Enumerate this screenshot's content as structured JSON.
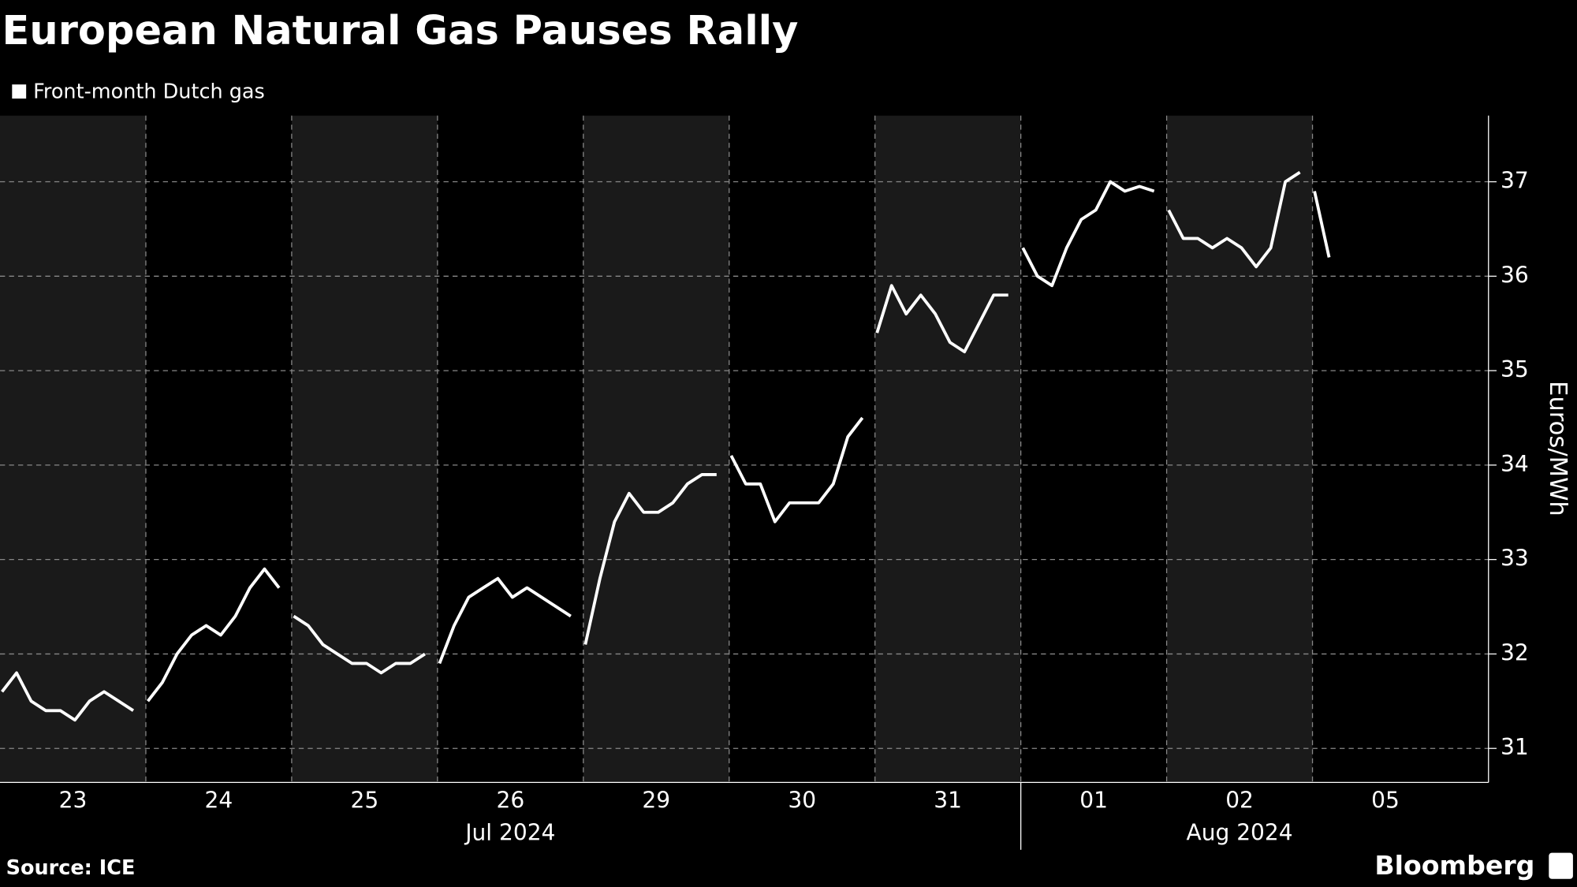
{
  "chart_data": {
    "type": "line",
    "title": "European Natural Gas Pauses Rally",
    "ylabel": "Euros/MWh",
    "source": "Source: ICE",
    "brand": "Bloomberg",
    "categories": [
      "23",
      "24",
      "25",
      "26",
      "29",
      "30",
      "31",
      "01",
      "02",
      "05"
    ],
    "x_groups": [
      {
        "label": "Jul 2024",
        "first": "23",
        "last": "31"
      },
      {
        "label": "Aug 2024",
        "first": "01",
        "last": "05"
      }
    ],
    "series": [
      {
        "name": "Front-month Dutch gas",
        "color": "#ffffff",
        "values": [
          [
            31.6,
            31.8,
            31.5,
            31.4,
            31.4,
            31.3,
            31.5,
            31.6,
            31.5,
            31.4
          ],
          [
            31.5,
            31.7,
            32.0,
            32.2,
            32.3,
            32.2,
            32.4,
            32.7,
            32.9,
            32.7
          ],
          [
            32.4,
            32.3,
            32.1,
            32.0,
            31.9,
            31.9,
            31.8,
            31.9,
            31.9,
            32.0
          ],
          [
            31.9,
            32.3,
            32.6,
            32.7,
            32.8,
            32.6,
            32.7,
            32.6,
            32.5,
            32.4
          ],
          [
            32.1,
            32.8,
            33.4,
            33.7,
            33.5,
            33.5,
            33.6,
            33.8,
            33.9,
            33.9
          ],
          [
            34.1,
            33.8,
            33.8,
            33.4,
            33.6,
            33.6,
            33.6,
            33.8,
            34.3,
            34.5
          ],
          [
            35.4,
            35.9,
            35.6,
            35.8,
            35.6,
            35.3,
            35.2,
            35.5,
            35.8,
            35.8
          ],
          [
            36.3,
            36.0,
            35.9,
            36.3,
            36.6,
            36.7,
            37.0,
            36.9,
            36.95,
            36.9
          ],
          [
            36.7,
            36.4,
            36.4,
            36.3,
            36.4,
            36.3,
            36.1,
            36.3,
            37.0,
            37.1
          ],
          [
            36.9,
            36.2,
            null,
            null,
            null,
            null,
            null,
            null,
            null,
            null
          ]
        ]
      }
    ],
    "ylim": [
      30.64,
      37.7
    ],
    "yticks": [
      31,
      32,
      33,
      34,
      35,
      36,
      37
    ],
    "grid": true
  }
}
